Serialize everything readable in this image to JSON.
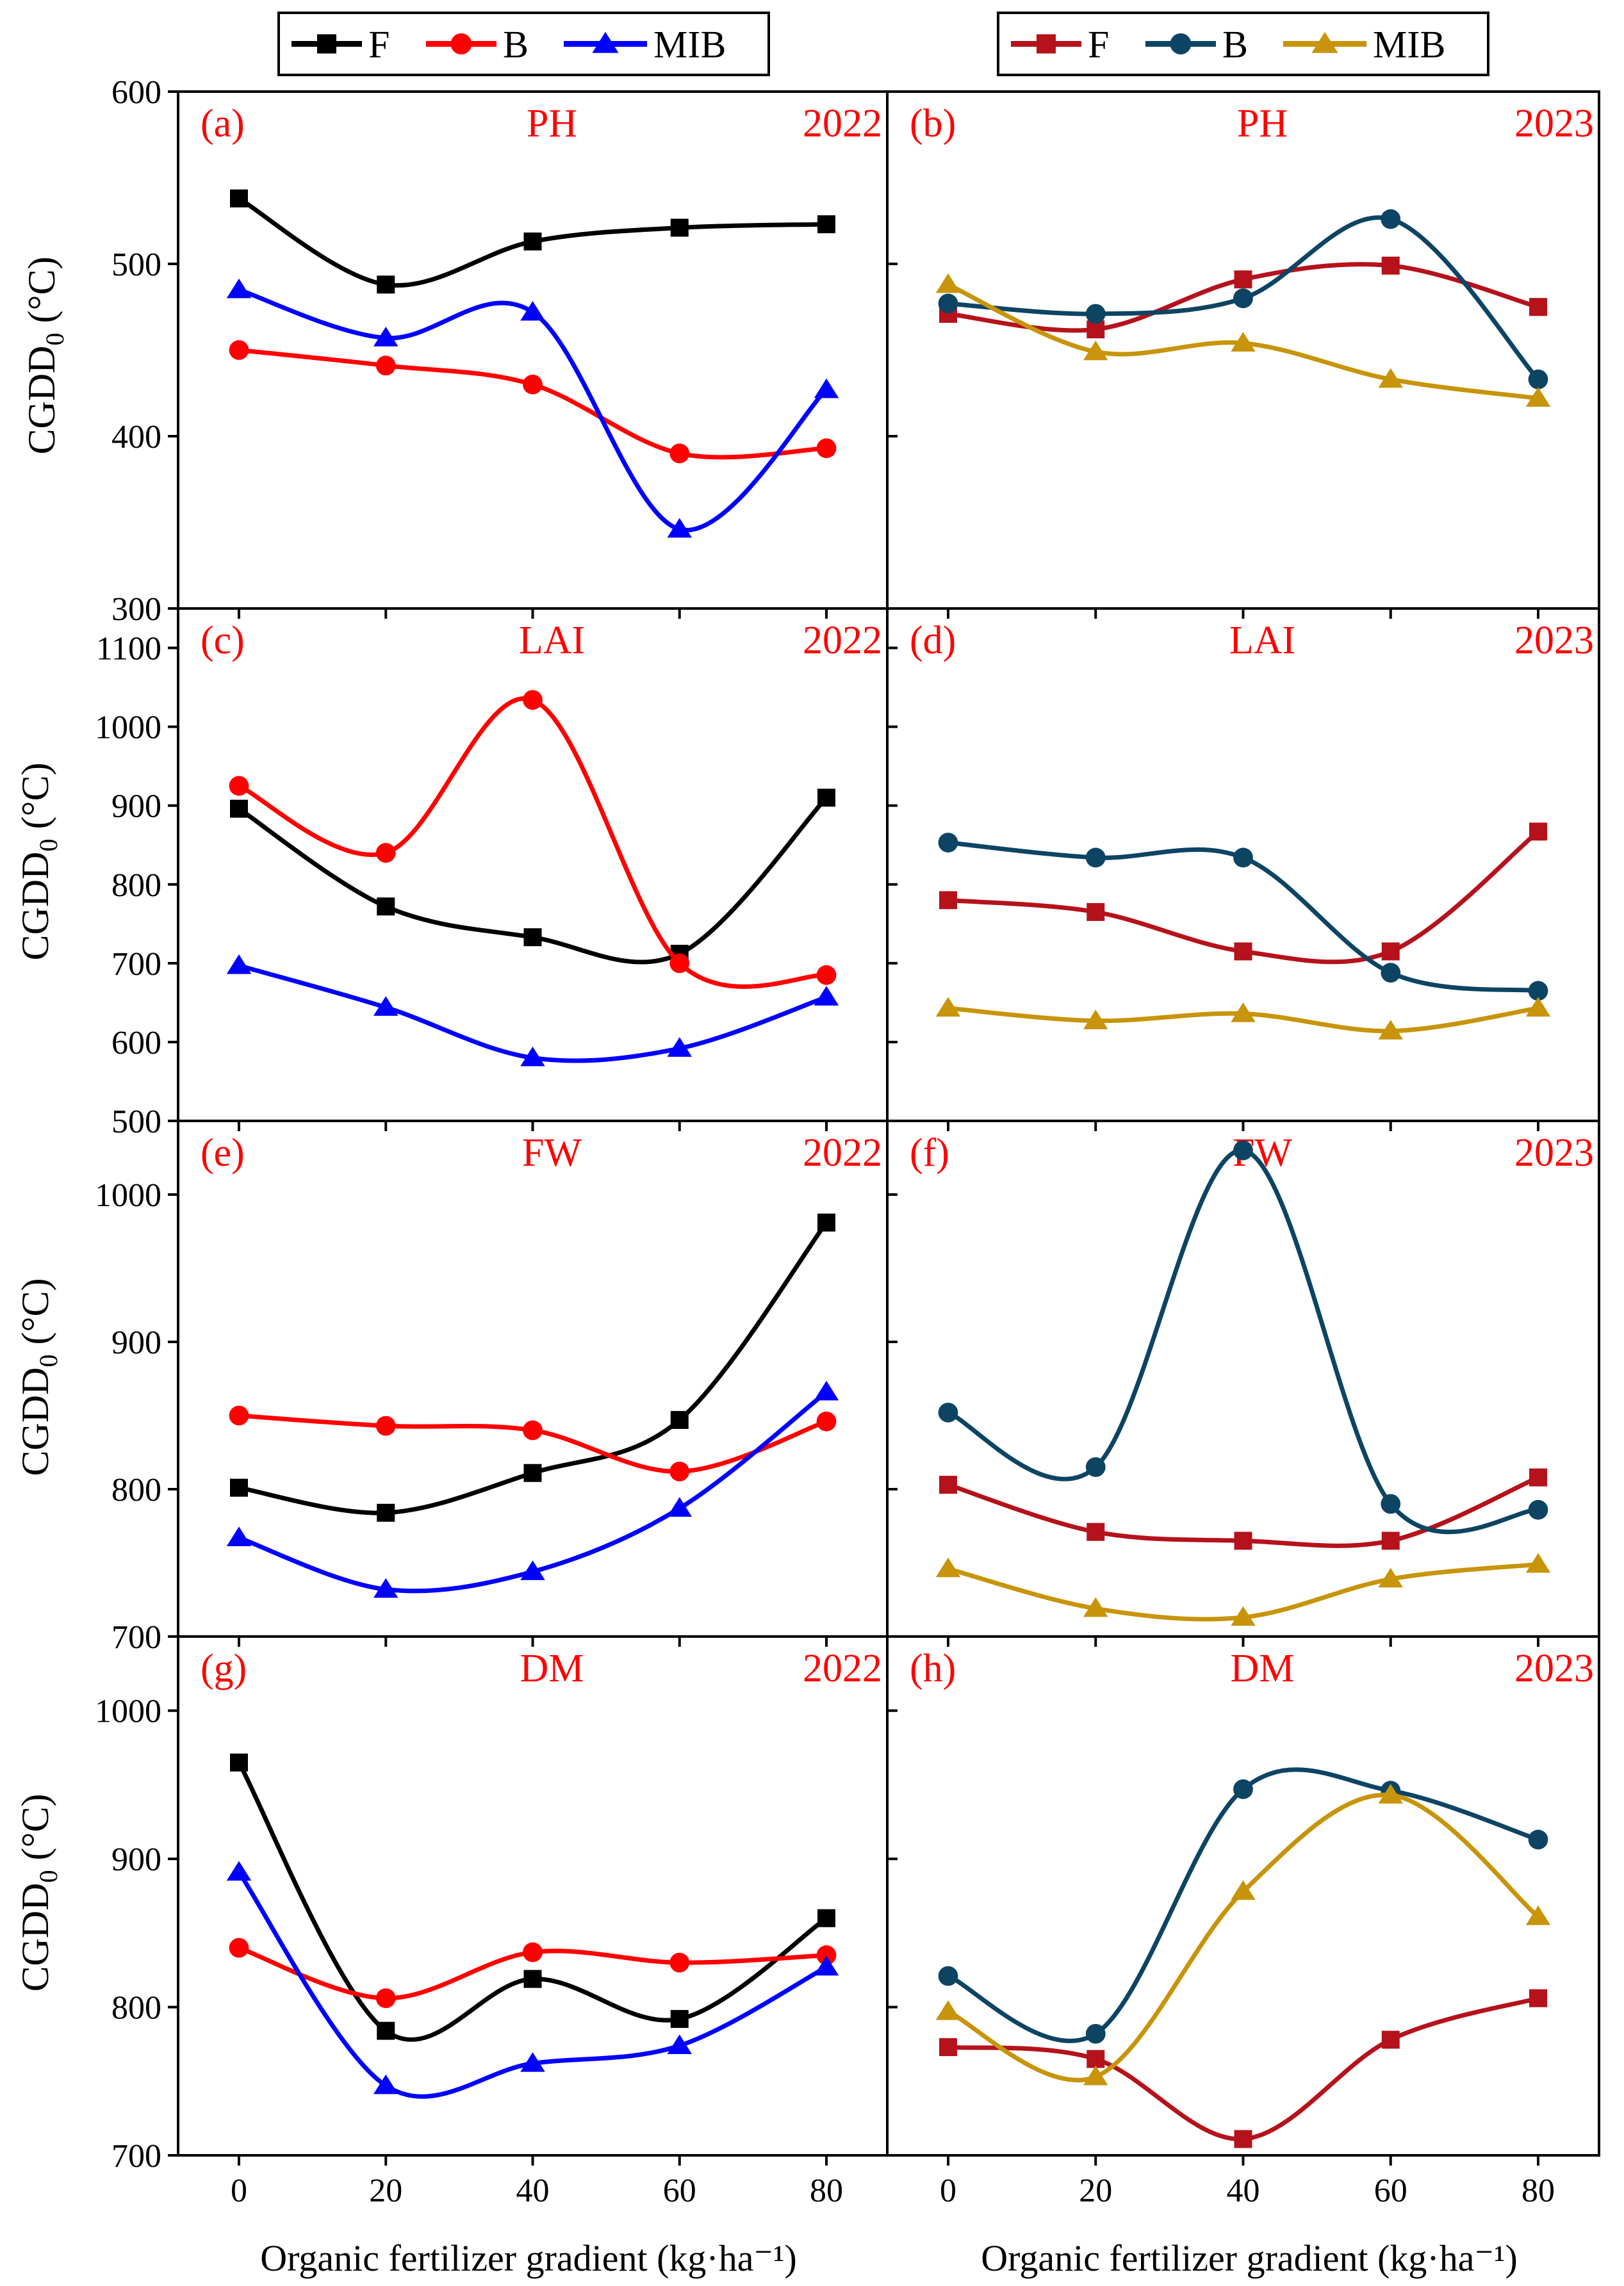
{
  "legends": [
    {
      "position": "top-left",
      "entries": [
        {
          "label": "F",
          "color": "#000000",
          "marker": "square"
        },
        {
          "label": "B",
          "color": "#ff0000",
          "marker": "circle"
        },
        {
          "label": "MIB",
          "color": "#0000ff",
          "marker": "triangle"
        }
      ]
    },
    {
      "position": "top-right",
      "entries": [
        {
          "label": "F",
          "color": "#b5121b",
          "marker": "square"
        },
        {
          "label": "B",
          "color": "#0d4463",
          "marker": "circle"
        },
        {
          "label": "MIB",
          "color": "#c7940a",
          "marker": "triangle"
        }
      ]
    }
  ],
  "axes": {
    "x_title": "Organic fertilizer gradient (kg·ha⁻¹)",
    "x_ticks": [
      0,
      20,
      40,
      60,
      80
    ],
    "y_title_main": "CGDD",
    "y_title_sub": "0",
    "y_title_unit": " (°C)"
  },
  "chart_data": [
    {
      "type": "line",
      "panel": "(a)",
      "variable": "PH",
      "year": "2022",
      "x": [
        0,
        20,
        40,
        60,
        80
      ],
      "ylim": [
        300,
        600
      ],
      "yticks": [
        300,
        400,
        500,
        600
      ],
      "series": [
        {
          "name": "F",
          "values": [
            538,
            488,
            513,
            521,
            523
          ]
        },
        {
          "name": "B",
          "values": [
            450,
            441,
            430,
            390,
            393
          ]
        },
        {
          "name": "MIB",
          "values": [
            485,
            457,
            472,
            346,
            427
          ]
        }
      ]
    },
    {
      "type": "line",
      "panel": "(b)",
      "variable": "PH",
      "year": "2023",
      "x": [
        0,
        20,
        40,
        60,
        80
      ],
      "ylim": [
        300,
        600
      ],
      "yticks": [
        300,
        400,
        500,
        600
      ],
      "series": [
        {
          "name": "F",
          "values": [
            471,
            462,
            491,
            499,
            475
          ]
        },
        {
          "name": "B",
          "values": [
            477,
            471,
            480,
            526,
            433
          ]
        },
        {
          "name": "MIB",
          "values": [
            488,
            449,
            454,
            433,
            422
          ]
        }
      ]
    },
    {
      "type": "line",
      "panel": "(c)",
      "variable": "LAI",
      "year": "2022",
      "x": [
        0,
        20,
        40,
        60,
        80
      ],
      "ylim": [
        500,
        1150
      ],
      "yticks": [
        500,
        600,
        700,
        800,
        900,
        1000,
        1100
      ],
      "series": [
        {
          "name": "F",
          "values": [
            896,
            772,
            733,
            712,
            910
          ]
        },
        {
          "name": "B",
          "values": [
            925,
            840,
            1034,
            700,
            685
          ]
        },
        {
          "name": "MIB",
          "values": [
            697,
            644,
            580,
            592,
            657
          ]
        }
      ]
    },
    {
      "type": "line",
      "panel": "(d)",
      "variable": "LAI",
      "year": "2023",
      "x": [
        0,
        20,
        40,
        60,
        80
      ],
      "ylim": [
        500,
        1150
      ],
      "yticks": [
        500,
        600,
        700,
        800,
        900,
        1000,
        1100
      ],
      "series": [
        {
          "name": "F",
          "values": [
            780,
            765,
            715,
            715,
            867
          ]
        },
        {
          "name": "B",
          "values": [
            853,
            834,
            834,
            688,
            665
          ]
        },
        {
          "name": "MIB",
          "values": [
            643,
            627,
            636,
            614,
            643
          ]
        }
      ]
    },
    {
      "type": "line",
      "panel": "(e)",
      "variable": "FW",
      "year": "2022",
      "x": [
        0,
        20,
        40,
        60,
        80
      ],
      "ylim": [
        700,
        1050
      ],
      "yticks": [
        700,
        800,
        900,
        1000
      ],
      "series": [
        {
          "name": "F",
          "values": [
            801,
            784,
            811,
            847,
            981
          ]
        },
        {
          "name": "B",
          "values": [
            850,
            843,
            840,
            812,
            846
          ]
        },
        {
          "name": "MIB",
          "values": [
            767,
            732,
            744,
            787,
            866
          ]
        }
      ]
    },
    {
      "type": "line",
      "panel": "(f)",
      "variable": "FW",
      "year": "2023",
      "x": [
        0,
        20,
        40,
        60,
        80
      ],
      "ylim": [
        700,
        1050
      ],
      "yticks": [
        700,
        800,
        900,
        1000
      ],
      "series": [
        {
          "name": "F",
          "values": [
            803,
            771,
            765,
            765,
            808
          ]
        },
        {
          "name": "B",
          "values": [
            852,
            815,
            1030,
            790,
            786
          ]
        },
        {
          "name": "MIB",
          "values": [
            746,
            719,
            713,
            739,
            749
          ]
        }
      ]
    },
    {
      "type": "line",
      "panel": "(g)",
      "variable": "DM",
      "year": "2022",
      "x": [
        0,
        20,
        40,
        60,
        80
      ],
      "ylim": [
        700,
        1050
      ],
      "yticks": [
        700,
        800,
        900,
        1000
      ],
      "series": [
        {
          "name": "F",
          "values": [
            965,
            784,
            819,
            792,
            860
          ]
        },
        {
          "name": "B",
          "values": [
            840,
            806,
            837,
            830,
            835
          ]
        },
        {
          "name": "MIB",
          "values": [
            891,
            747,
            762,
            774,
            827
          ]
        }
      ]
    },
    {
      "type": "line",
      "panel": "(h)",
      "variable": "DM",
      "year": "2023",
      "x": [
        0,
        20,
        40,
        60,
        80
      ],
      "ylim": [
        700,
        1050
      ],
      "yticks": [
        700,
        800,
        900,
        1000
      ],
      "series": [
        {
          "name": "F",
          "values": [
            773,
            765,
            711,
            778,
            806
          ]
        },
        {
          "name": "B",
          "values": [
            821,
            782,
            947,
            946,
            913
          ]
        },
        {
          "name": "MIB",
          "values": [
            797,
            753,
            878,
            943,
            861
          ]
        }
      ]
    }
  ]
}
